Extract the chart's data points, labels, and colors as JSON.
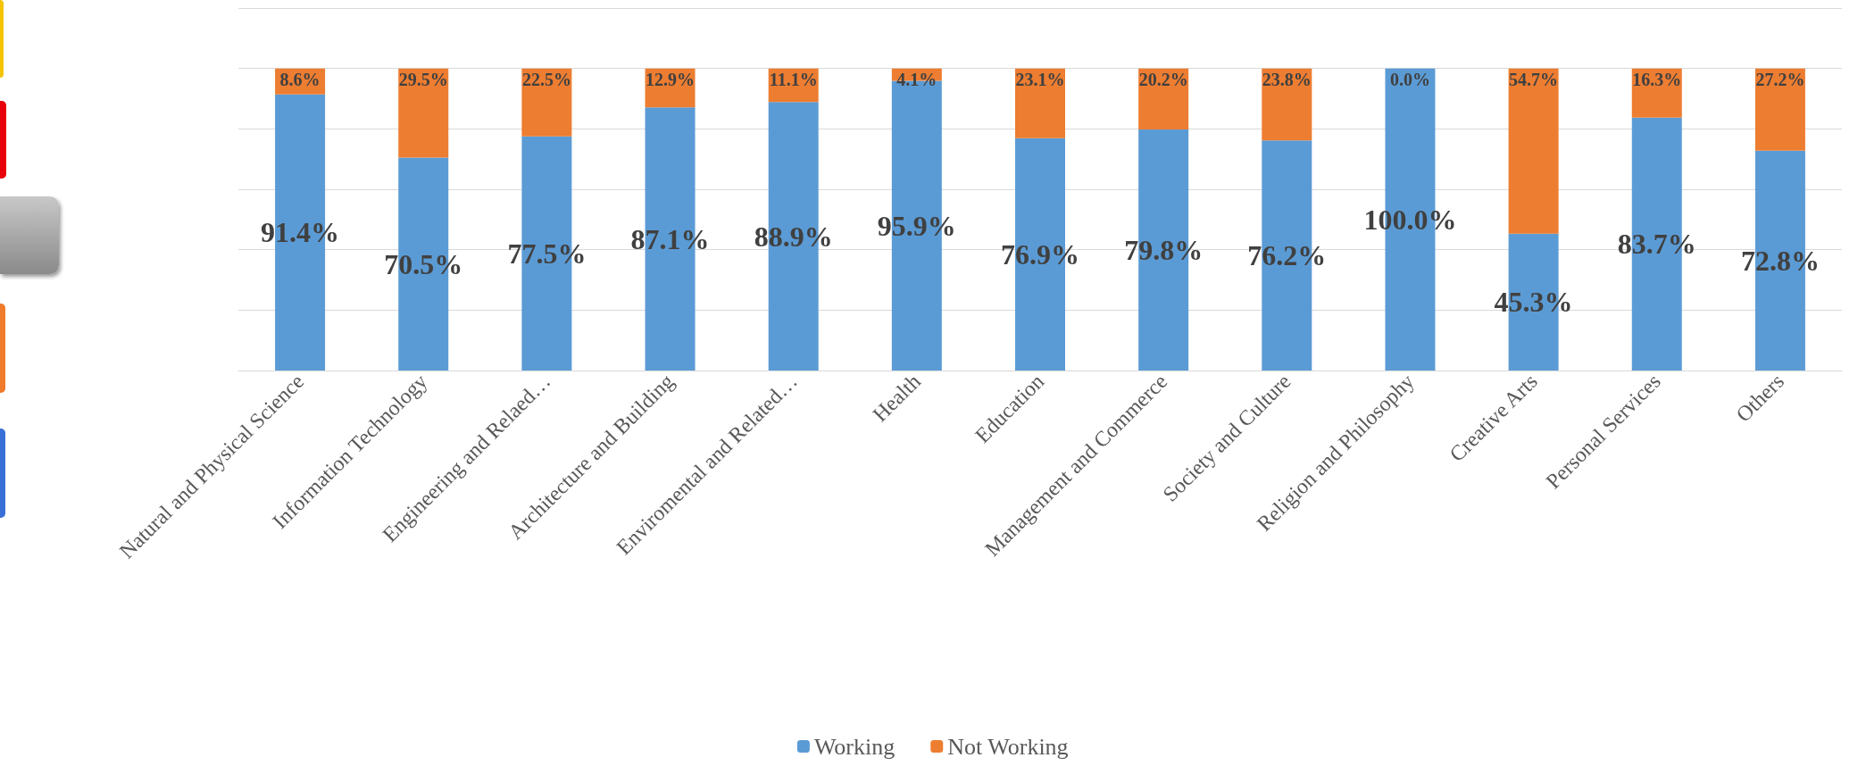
{
  "chart_data": {
    "type": "bar",
    "stacked": true,
    "categories": [
      "Natural and Physical Science",
      "Information Technology",
      "Engineering and Relaed…",
      "Architecture and Building",
      "Enviromental and Related…",
      "Health",
      "Education",
      "Management and Commerce",
      "Society and Culture",
      "Religion and Philosophy",
      "Creative Arts",
      "Personal Services",
      "Others"
    ],
    "series": [
      {
        "name": "Working",
        "color": "#5b9bd5",
        "values": [
          91.4,
          70.5,
          77.5,
          87.1,
          88.9,
          95.9,
          76.9,
          79.8,
          76.2,
          100.0,
          45.3,
          83.7,
          72.8
        ],
        "value_labels": [
          "91.4%",
          "70.5%",
          "77.5%",
          "87.1%",
          "88.9%",
          "95.9%",
          "76.9%",
          "79.8%",
          "76.2%",
          "100.0%",
          "45.3%",
          "83.7%",
          "72.8%"
        ]
      },
      {
        "name": "Not Working",
        "color": "#ed7d31",
        "values": [
          8.6,
          29.5,
          22.5,
          12.9,
          11.1,
          4.1,
          23.1,
          20.2,
          23.8,
          0.0,
          54.7,
          16.3,
          27.2
        ],
        "value_labels": [
          "8.6%",
          "29.5%",
          "22.5%",
          "12.9%",
          "11.1%",
          "4.1%",
          "23.1%",
          "20.2%",
          "23.8%",
          "0.0%",
          "54.7%",
          "16.3%",
          "27.2%"
        ]
      }
    ],
    "ylim": [
      0,
      120
    ],
    "yticks": [
      {
        "value": 0,
        "label": null
      },
      {
        "value": 20,
        "label": null
      },
      {
        "value": 40,
        "label": null
      },
      {
        "value": 60,
        "label": null
      },
      {
        "value": 80,
        "label": null
      },
      {
        "value": 100,
        "label": null
      },
      {
        "value": 120,
        "label": null
      }
    ],
    "tick_labels": "x",
    "grid": "y",
    "legend": "bottom"
  }
}
